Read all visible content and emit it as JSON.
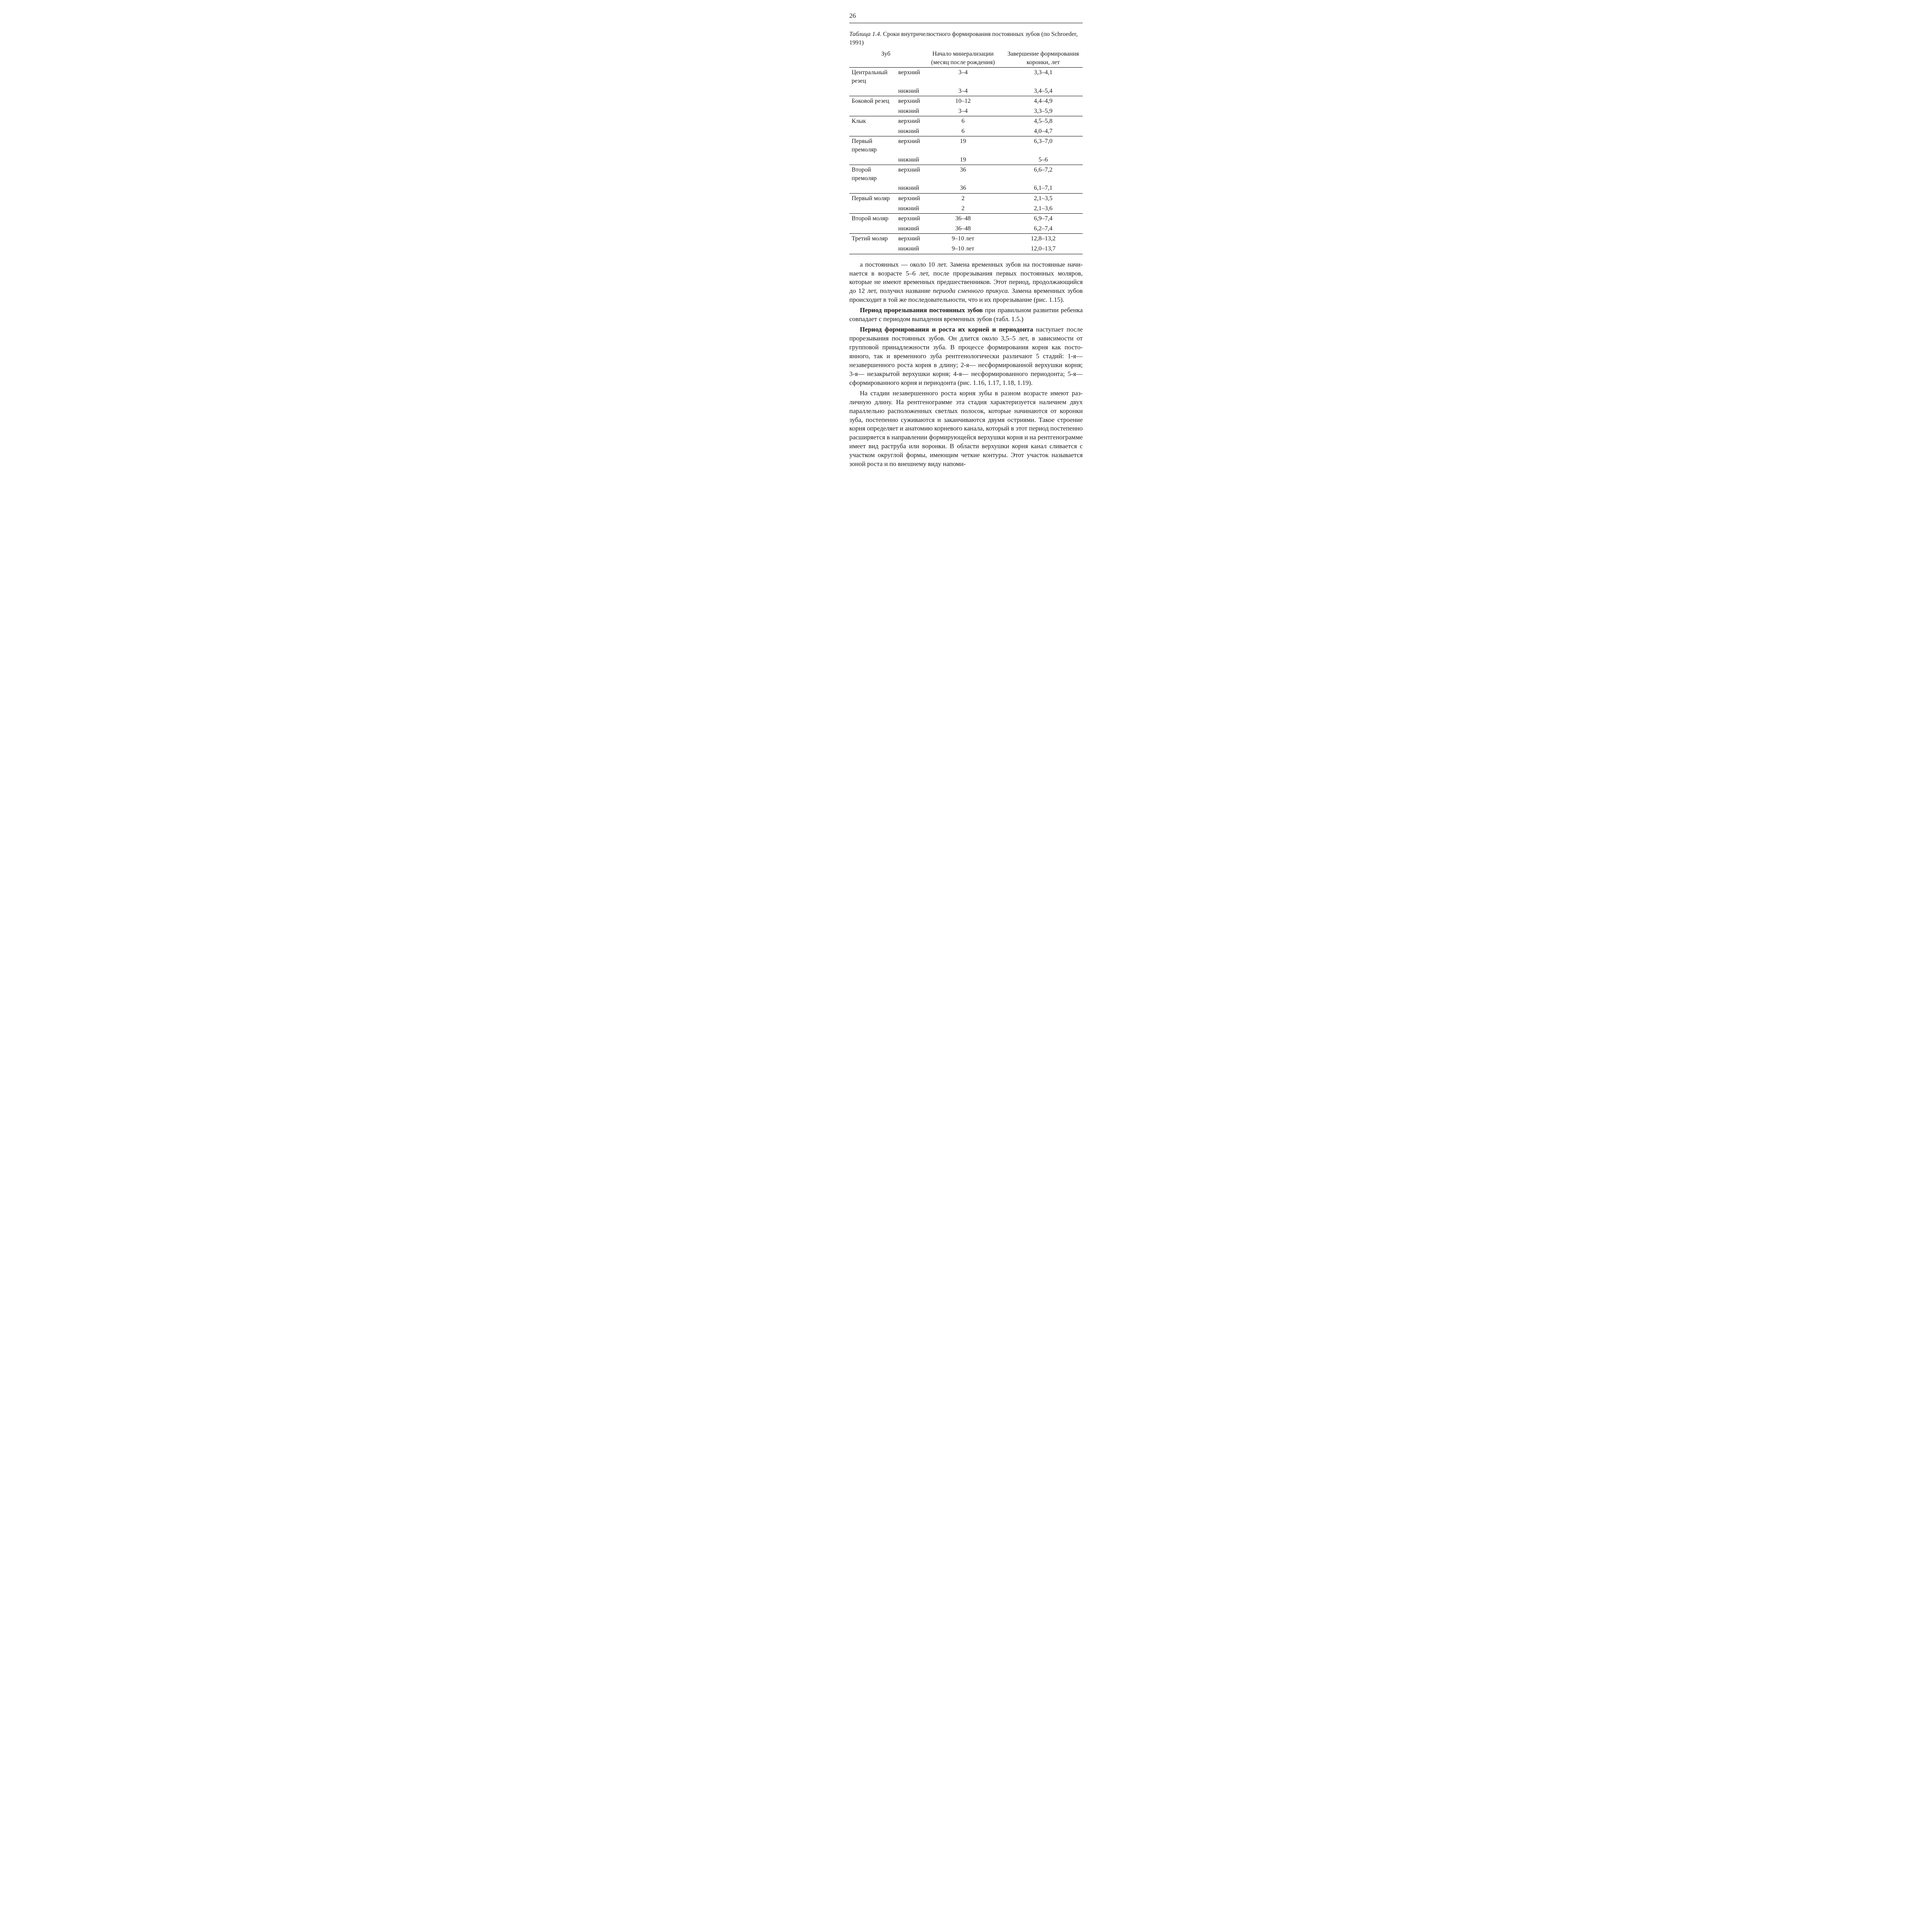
{
  "page_number": "26",
  "caption": {
    "label": "Таблица 1.4.",
    "text": "Сроки внутричелюстного формирования постоянных зубов (по Schroeder, 1991)"
  },
  "table": {
    "headers": {
      "col1": "Зуб",
      "col2": "Начало минерализации (месяц после рождения)",
      "col3": "Завершение форми­рования коронки, лет"
    },
    "rows": [
      {
        "tooth": "Центральный резец",
        "pos": "верхний",
        "start": "3–4",
        "end": "3,3–4,1"
      },
      {
        "tooth": "",
        "pos": "нижний",
        "start": "3–4",
        "end": "3,4–5,4"
      },
      {
        "tooth": "Боковой резец",
        "pos": "верхний",
        "start": "10–12",
        "end": "4,4–4,9"
      },
      {
        "tooth": "",
        "pos": "нижний",
        "start": "3–4",
        "end": "3,3–5,9"
      },
      {
        "tooth": "Клык",
        "pos": "верхний",
        "start": "6",
        "end": "4,5–5,8"
      },
      {
        "tooth": "",
        "pos": "нижний",
        "start": "6",
        "end": "4,0–4,7"
      },
      {
        "tooth": "Первый премоляр",
        "pos": "верхний",
        "start": "19",
        "end": "6,3–7,0"
      },
      {
        "tooth": "",
        "pos": "нижний",
        "start": "19",
        "end": "5–6"
      },
      {
        "tooth": "Второй премоляр",
        "pos": "верхний",
        "start": "36",
        "end": "6,6–7,2"
      },
      {
        "tooth": "",
        "pos": "нижний",
        "start": "36",
        "end": "6,1–7,1"
      },
      {
        "tooth": "Первый моляр",
        "pos": "верхний",
        "start": "2",
        "end": "2,1–3,5"
      },
      {
        "tooth": "",
        "pos": "нижний",
        "start": "2",
        "end": "2,1–3,6"
      },
      {
        "tooth": "Второй моляр",
        "pos": "верхний",
        "start": "36–48",
        "end": "6,9–7,4"
      },
      {
        "tooth": "",
        "pos": "нижний",
        "start": "36–48",
        "end": "6,2–7,4"
      },
      {
        "tooth": "Третий моляр",
        "pos": "верхний",
        "start": "9–10 лет",
        "end": "12,8–13,2"
      },
      {
        "tooth": "",
        "pos": "нижний",
        "start": "9–10 лет",
        "end": "12,0–13,7"
      }
    ]
  },
  "paragraphs": {
    "p1_a": "а постоянных — около 10 лет. Замена временных зубов на постоянные начи­нается в возрасте 5–6 лет, после прорезывания первых постоянных моляров, которые не имеют временных предшественников. Этот период, продолжаю­щийся до 12 лет, получил название ",
    "p1_ital": "периода сменного прикуса.",
    "p1_b": " Замена времен­ных зубов происходит в той же последовательности, что и их прорезывание (рис. 1.15).",
    "p2_bold": "Период прорезывания постоянных зубов",
    "p2_rest": " при правильном развитии ребенка совпадает с периодом выпадения временных зубов (табл. 1.5.)",
    "p3_bold": "Период формирования и роста их корней и периодонта",
    "p3_rest": " наступает после про­резывания постоянных зубов. Он длится около 3,5–5 лет, в зависимости от групповой принадлежности зуба. В процессе формирования корня как посто­янного, так и временного зуба рентгенологически различают 5 стадий: 1-я— незавершенного роста корня в длину; 2-я— несформированной верхушки корня; 3-я— незакрытой верхушки корня; 4-я— несформированного перио­донта; 5-я— сформированного корня и периодонта (рис. 1.16, 1.17, 1.18, 1.19).",
    "p4": "На стадии незавершенного роста корня зубы в разном возрасте имеют раз­личную длину. На рентгенограмме эта стадия характеризуется наличием двух параллельно расположенных светлых полосок, которые начинаются от ко­ронки зуба, постепенно суживаются и заканчиваются двумя остриями. Такое строение корня определяет и анатомию корневого канала, который в этот пе­риод постепенно расширяется в направлении формирующейся верхушки корня и на рентгенограмме имеет вид раструба или воронки. В области вер­хушки корня канал сливается с участком округлой формы, имеющим четкие контуры. Этот участок называется зоной роста и по внешнему виду напоми-"
  }
}
